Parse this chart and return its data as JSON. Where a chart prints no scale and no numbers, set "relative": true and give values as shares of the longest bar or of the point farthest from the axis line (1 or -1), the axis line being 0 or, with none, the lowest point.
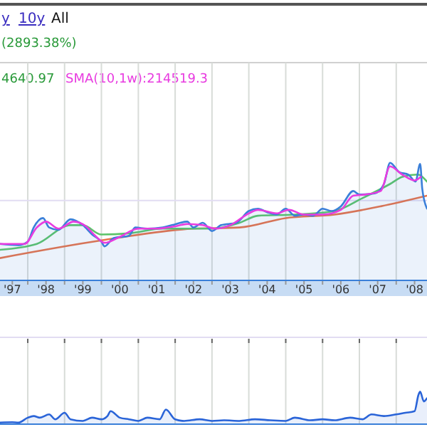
{
  "chart_data": [
    {
      "type": "area",
      "relative": true,
      "annotations": [
        "y",
        "10y",
        "All",
        "(2893.38%)",
        "4640.97",
        "SMA(10,1w):214519.3"
      ],
      "xlim": [
        "1997-04",
        "2008-11"
      ],
      "xticks": [
        {
          "value": "1997-08",
          "label": "'97"
        },
        {
          "value": "1998-07",
          "label": "'98"
        },
        {
          "value": "1999-07",
          "label": "'99"
        },
        {
          "value": "2000-07",
          "label": "'00"
        },
        {
          "value": "2001-07",
          "label": "'01"
        },
        {
          "value": "2002-07",
          "label": "'02"
        },
        {
          "value": "2003-07",
          "label": "'03"
        },
        {
          "value": "2004-07",
          "label": "'04"
        },
        {
          "value": "2005-07",
          "label": "'05"
        },
        {
          "value": "2006-07",
          "label": "'06"
        },
        {
          "value": "2007-07",
          "label": "'07"
        },
        {
          "value": "2008-07",
          "label": "'08"
        },
        {
          "value": "1998",
          "label": null
        },
        {
          "value": "1999",
          "label": null
        },
        {
          "value": "2000",
          "label": null
        },
        {
          "value": "2001",
          "label": null
        },
        {
          "value": "2002",
          "label": null
        },
        {
          "value": "2003",
          "label": null
        },
        {
          "value": "2004",
          "label": null
        },
        {
          "value": "2005",
          "label": null
        },
        {
          "value": "2006",
          "label": null
        },
        {
          "value": "2007",
          "label": null
        },
        {
          "value": "2008",
          "label": null
        }
      ],
      "tick_labels": "x",
      "grid": "x",
      "ref_lines": [
        {
          "axis": "y",
          "value": 0.68,
          "color": "#e2dcf2"
        }
      ],
      "series": [
        {
          "type": "line",
          "color": "#e8734a",
          "x": [
            "1997-04",
            "2000-01",
            "2002-07",
            "2003-10",
            "2005-01",
            "2006-05",
            "2007-08",
            "2008-11"
          ],
          "values": [
            0.19,
            0.34,
            0.44,
            0.45,
            0.53,
            0.56,
            0.63,
            0.72
          ]
        },
        {
          "type": "line",
          "color": "#5cc46a",
          "x": [
            "1997-04",
            "1998-04",
            "1999-03",
            "1999-07",
            "2000-01",
            "2000-10",
            "2001-09",
            "2003-01",
            "2003-10",
            "2004-04",
            "2005-04",
            "2006-05",
            "2007-02",
            "2007-11",
            "2008-03",
            "2008-08",
            "2008-11"
          ],
          "values": [
            0.26,
            0.31,
            0.47,
            0.47,
            0.39,
            0.4,
            0.44,
            0.44,
            0.49,
            0.55,
            0.56,
            0.59,
            0.7,
            0.82,
            0.88,
            0.9,
            0.84
          ]
        },
        {
          "type": "area",
          "color": "#3a7fd9",
          "x": [
            "1997-04",
            "1997-10",
            "1998-01",
            "1998-03",
            "1998-06",
            "1998-08",
            "1998-11",
            "1999-03",
            "1999-07",
            "1999-10",
            "2000-01",
            "2000-02",
            "2000-05",
            "2000-10",
            "2000-12",
            "2001-04",
            "2001-09",
            "2001-12",
            "2002-05",
            "2002-07",
            "2002-10",
            "2003-01",
            "2003-04",
            "2003-09",
            "2004-01",
            "2004-04",
            "2004-07",
            "2004-10",
            "2005-01",
            "2005-04",
            "2005-07",
            "2005-10",
            "2006-01",
            "2006-04",
            "2006-07",
            "2006-11",
            "2007-01",
            "2007-06",
            "2007-09",
            "2007-11",
            "2008-02",
            "2008-05",
            "2008-07-10",
            "2008-08-25",
            "2008-09-15",
            "2008-11-01"
          ],
          "values": [
            0.31,
            0.3,
            0.33,
            0.45,
            0.53,
            0.45,
            0.43,
            0.52,
            0.47,
            0.39,
            0.33,
            0.29,
            0.36,
            0.38,
            0.45,
            0.44,
            0.45,
            0.47,
            0.5,
            0.45,
            0.49,
            0.42,
            0.47,
            0.49,
            0.59,
            0.61,
            0.58,
            0.56,
            0.61,
            0.55,
            0.56,
            0.55,
            0.61,
            0.59,
            0.63,
            0.76,
            0.73,
            0.74,
            0.82,
            1.0,
            0.92,
            0.9,
            0.84,
            0.99,
            0.78,
            0.61
          ]
        },
        {
          "type": "line",
          "color": "#e83ce0",
          "x": [
            "1997-04",
            "1997-12",
            "1998-04",
            "1998-07",
            "1998-11",
            "1999-04",
            "1999-08",
            "1999-11",
            "2000-02",
            "2000-07",
            "2001-01",
            "2001-07",
            "2002-01",
            "2002-05",
            "2002-10",
            "2003-02",
            "2003-07",
            "2004-01",
            "2004-04",
            "2004-10",
            "2005-02",
            "2005-07",
            "2006-01",
            "2006-07",
            "2006-11",
            "2007-03",
            "2007-08",
            "2007-11",
            "2008-03",
            "2008-07",
            "2008-09"
          ],
          "values": [
            0.31,
            0.31,
            0.45,
            0.5,
            0.44,
            0.5,
            0.46,
            0.38,
            0.32,
            0.37,
            0.44,
            0.44,
            0.46,
            0.48,
            0.47,
            0.44,
            0.47,
            0.57,
            0.6,
            0.57,
            0.6,
            0.56,
            0.56,
            0.6,
            0.72,
            0.73,
            0.76,
            0.97,
            0.9,
            0.85,
            0.88
          ]
        }
      ]
    },
    {
      "type": "area",
      "relative": true,
      "xlim": [
        "1997-04",
        "2008-11"
      ],
      "xticks": [
        {
          "value": "1998",
          "label": null
        },
        {
          "value": "1999",
          "label": null
        },
        {
          "value": "2000",
          "label": null
        },
        {
          "value": "2001",
          "label": null
        },
        {
          "value": "2002",
          "label": null
        },
        {
          "value": "2003",
          "label": null
        },
        {
          "value": "2004",
          "label": null
        },
        {
          "value": "2005",
          "label": null
        },
        {
          "value": "2006",
          "label": null
        },
        {
          "value": "2007",
          "label": null
        },
        {
          "value": "2008",
          "label": null
        }
      ],
      "tick_labels": false,
      "grid": "x",
      "series": [
        {
          "color": "#2a64d8",
          "x": [
            "1997-04",
            "1997-08",
            "1997-10",
            "1998-01",
            "1998-03",
            "1998-05",
            "1998-08",
            "1998-10",
            "1999-01",
            "1999-03",
            "1999-07",
            "1999-10",
            "2000-01",
            "2000-03",
            "2000-04",
            "2000-07",
            "2000-10",
            "2001-01",
            "2001-04",
            "2001-08",
            "2001-10",
            "2002-01",
            "2002-04",
            "2002-09",
            "2003-01",
            "2003-05",
            "2003-10",
            "2004-03",
            "2004-08",
            "2005-01",
            "2005-04",
            "2005-09",
            "2006-01",
            "2006-05",
            "2006-10",
            "2007-02",
            "2007-05",
            "2007-09",
            "2008-01",
            "2008-04",
            "2008-07-01",
            "2008-08-08",
            "2008-08-25",
            "2008-10-01",
            "2008-11-01"
          ],
          "values": [
            0.05,
            0.06,
            0.05,
            0.2,
            0.25,
            0.2,
            0.3,
            0.15,
            0.35,
            0.15,
            0.1,
            0.2,
            0.15,
            0.25,
            0.4,
            0.2,
            0.15,
            0.1,
            0.2,
            0.15,
            0.45,
            0.15,
            0.1,
            0.15,
            0.1,
            0.12,
            0.1,
            0.15,
            0.12,
            0.1,
            0.2,
            0.12,
            0.15,
            0.12,
            0.2,
            0.15,
            0.3,
            0.25,
            0.3,
            0.35,
            0.4,
            0.9,
            1.0,
            0.7,
            0.8
          ]
        }
      ]
    }
  ]
}
